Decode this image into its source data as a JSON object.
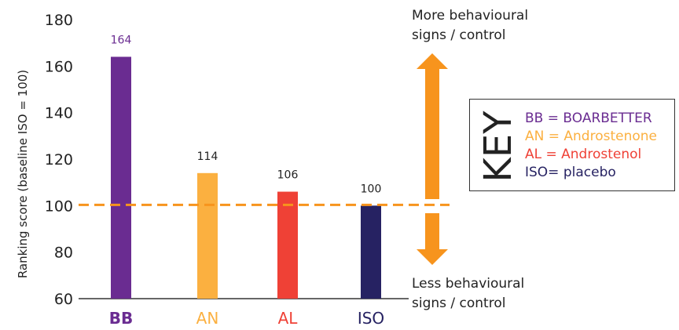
{
  "chart_data": {
    "type": "bar",
    "categories": [
      "BB",
      "AN",
      "AL",
      "ISO"
    ],
    "values": [
      164,
      114,
      106,
      100
    ],
    "data_labels": [
      "164",
      "114",
      "106",
      "100"
    ],
    "title": "",
    "xlabel": "",
    "ylabel": "Ranking score (baseline ISO = 100)",
    "ylim": [
      60,
      180
    ],
    "yticks": [
      60,
      80,
      100,
      120,
      140,
      160,
      180
    ],
    "baseline": 100,
    "grid": false,
    "legend_position": "right",
    "colors": {
      "BB": "#6a2c91",
      "AN": "#fbb040",
      "AL": "#ef4136",
      "ISO": "#262262",
      "baseline_line": "#f7941d",
      "arrow": "#f7941d"
    },
    "annotations": {
      "top": [
        "More behavioural",
        "signs / control"
      ],
      "bottom": [
        "Less behavioural",
        "signs / control"
      ]
    }
  },
  "key": {
    "title": "KEY",
    "entries": [
      {
        "text": "BB = BOARBETTER",
        "color": "#6a2c91"
      },
      {
        "text": "AN = Androstenone",
        "color": "#fbb040"
      },
      {
        "text": "AL = Androstenol",
        "color": "#ef4136"
      },
      {
        "text": "ISO= placebo",
        "color": "#262262"
      }
    ]
  }
}
